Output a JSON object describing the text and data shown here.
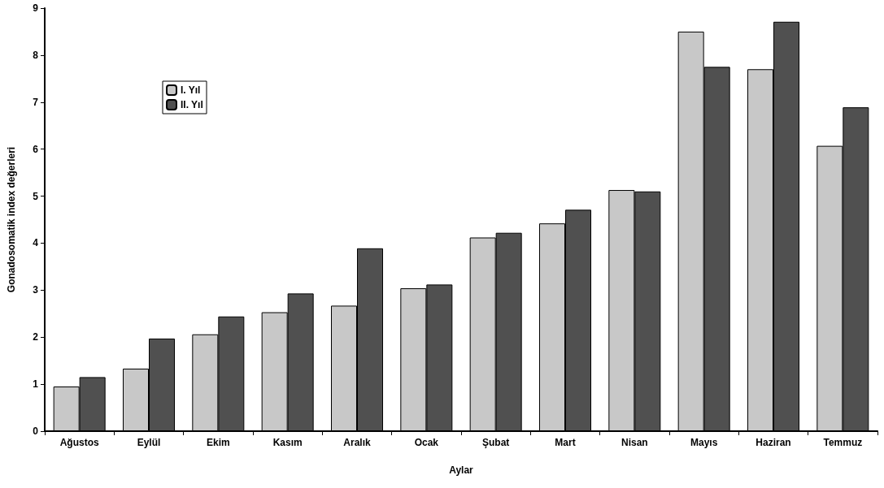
{
  "chart_data": {
    "type": "bar",
    "xlabel": "Aylar",
    "ylabel": "Gonadosomatik index değerleri",
    "categories": [
      "Ağustos",
      "Eylül",
      "Ekim",
      "Kasım",
      "Aralık",
      "Ocak",
      "Şubat",
      "Mart",
      "Nisan",
      "Mayıs",
      "Haziran",
      "Temmuz"
    ],
    "series": [
      {
        "name": "I. Yıl",
        "color": "#c8c8c8",
        "values": [
          0.95,
          1.33,
          2.06,
          2.53,
          2.67,
          3.04,
          4.12,
          4.42,
          5.13,
          8.5,
          7.7,
          6.07
        ]
      },
      {
        "name": "II. Yıl",
        "color": "#505050",
        "values": [
          1.15,
          1.97,
          2.44,
          2.93,
          3.89,
          3.12,
          4.22,
          4.71,
          5.1,
          7.75,
          8.71,
          6.89
        ]
      }
    ],
    "ylim": [
      0,
      9
    ],
    "yticks": [
      0,
      1,
      2,
      3,
      4,
      5,
      6,
      7,
      8,
      9
    ],
    "grid": false,
    "legend": "top left"
  }
}
